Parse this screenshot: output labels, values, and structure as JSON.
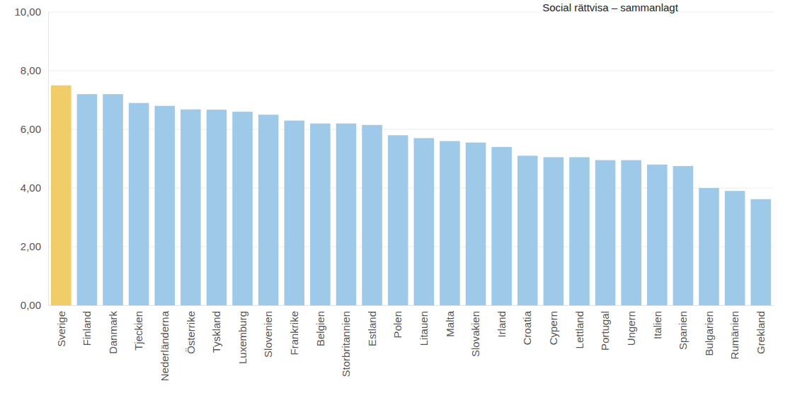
{
  "chart_data": {
    "type": "bar",
    "title": "Social rättvisa – sammanlagt",
    "categories": [
      "Sverige",
      "Finland",
      "Danmark",
      "Tjeckien",
      "Nederländerna",
      "Österrike",
      "Tyskland",
      "Luxemburg",
      "Slovenien",
      "Frankrike",
      "Belgien",
      "Storbritannien",
      "Estland",
      "Polen",
      "Litauen",
      "Malta",
      "Slovakien",
      "Irland",
      "Croatia",
      "Cypern",
      "Lettland",
      "Portugal",
      "Ungern",
      "Italien",
      "Spanien",
      "Bulgarien",
      "Rumänien",
      "Grekland"
    ],
    "values": [
      7.5,
      7.2,
      7.2,
      6.9,
      6.8,
      6.68,
      6.67,
      6.6,
      6.5,
      6.3,
      6.2,
      6.2,
      6.15,
      5.8,
      5.7,
      5.6,
      5.55,
      5.4,
      5.1,
      5.05,
      5.05,
      4.95,
      4.95,
      4.8,
      4.75,
      4.0,
      3.9,
      3.62
    ],
    "colors": [
      "#f0cd68",
      "#9fc9e8",
      "#9fc9e8",
      "#9fc9e8",
      "#9fc9e8",
      "#9fc9e8",
      "#9fc9e8",
      "#9fc9e8",
      "#9fc9e8",
      "#9fc9e8",
      "#9fc9e8",
      "#9fc9e8",
      "#9fc9e8",
      "#9fc9e8",
      "#9fc9e8",
      "#9fc9e8",
      "#9fc9e8",
      "#9fc9e8",
      "#9fc9e8",
      "#9fc9e8",
      "#9fc9e8",
      "#9fc9e8",
      "#9fc9e8",
      "#9fc9e8",
      "#9fc9e8",
      "#9fc9e8",
      "#9fc9e8",
      "#9fc9e8"
    ],
    "ylim": [
      0,
      10
    ],
    "yticks": [
      {
        "value": 0,
        "label": "0,00"
      },
      {
        "value": 2,
        "label": "2,00"
      },
      {
        "value": 4,
        "label": "4,00"
      },
      {
        "value": 6,
        "label": "6,00"
      },
      {
        "value": 8,
        "label": "8,00"
      },
      {
        "value": 10,
        "label": "10,00"
      }
    ],
    "grid": true
  }
}
